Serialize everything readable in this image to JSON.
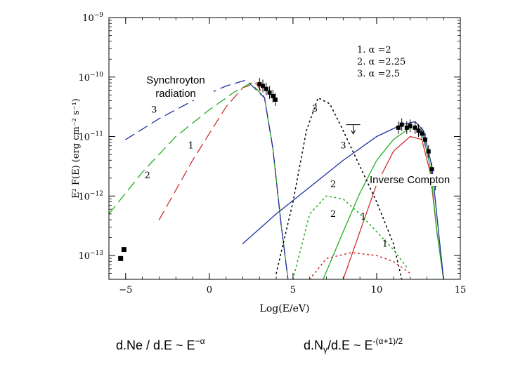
{
  "chart_data": {
    "type": "line",
    "xlabel": "Log(E/eV)",
    "ylabel": "E² F(E) (erg cm⁻² s⁻¹)",
    "xlim": [
      -6,
      15
    ],
    "ylim_log10": [
      -13.4,
      -9
    ],
    "x_ticks": [
      -5,
      0,
      5,
      10,
      15
    ],
    "y_tick_labels": [
      {
        "exp": -9,
        "label": "10",
        "sup": "−9"
      },
      {
        "exp": -10,
        "label": "10",
        "sup": "−10"
      },
      {
        "exp": -11,
        "label": "10",
        "sup": "−11"
      },
      {
        "exp": -12,
        "label": "10",
        "sup": "−12"
      },
      {
        "exp": -13,
        "label": "10",
        "sup": "−13"
      }
    ],
    "legend": [
      "1.  α =2",
      "2.  α =2.25",
      "3.  α =2.5"
    ],
    "legend_placement": "top-right",
    "colors": {
      "s1": "#d03030",
      "s2": "#20b020",
      "s3": "#2030a0",
      "dotted": "#000000"
    },
    "series": [
      {
        "name": "1",
        "color": "#d03030",
        "dash": "long",
        "points": [
          [
            -3,
            -12.4
          ],
          [
            -1,
            -11.4
          ],
          [
            1,
            -10.5
          ],
          [
            2,
            -10.18
          ],
          [
            2.8,
            -10.1
          ],
          [
            3.3,
            -10.35
          ],
          [
            3.8,
            -11.2
          ],
          [
            4.3,
            -12.5
          ],
          [
            4.7,
            -13.4
          ]
        ]
      },
      {
        "name": "2",
        "color": "#20b020",
        "dash": "long",
        "points": [
          [
            -6,
            -12.3
          ],
          [
            -4,
            -11.6
          ],
          [
            -2,
            -11
          ],
          [
            0,
            -10.55
          ],
          [
            1.5,
            -10.25
          ],
          [
            2.5,
            -10.1
          ],
          [
            3.3,
            -10.35
          ],
          [
            3.8,
            -11.2
          ],
          [
            4.3,
            -12.5
          ],
          [
            4.7,
            -13.4
          ]
        ]
      },
      {
        "name": "3",
        "color": "#2030a0",
        "dash": "long",
        "points": [
          [
            -5,
            -11.05
          ],
          [
            -3,
            -10.7
          ],
          [
            -1,
            -10.4
          ],
          [
            1,
            -10.15
          ],
          [
            2.2,
            -10.05
          ],
          [
            3.3,
            -10.35
          ],
          [
            3.8,
            -11.2
          ],
          [
            4.3,
            -12.5
          ],
          [
            4.7,
            -13.4
          ]
        ]
      },
      {
        "name": "1",
        "color": "#d03030",
        "dash": "solid",
        "points": [
          [
            8,
            -13.4
          ],
          [
            9,
            -12.6
          ],
          [
            10,
            -11.8
          ],
          [
            11,
            -11.25
          ],
          [
            12,
            -11.0
          ],
          [
            12.7,
            -11.05
          ],
          [
            13.2,
            -11.6
          ],
          [
            13.6,
            -12.6
          ],
          [
            14,
            -13.4
          ]
        ]
      },
      {
        "name": "2",
        "color": "#20b020",
        "dash": "solid",
        "points": [
          [
            6.8,
            -13.4
          ],
          [
            8,
            -12.6
          ],
          [
            9,
            -11.95
          ],
          [
            10,
            -11.4
          ],
          [
            11,
            -11.05
          ],
          [
            12,
            -10.85
          ],
          [
            12.7,
            -10.9
          ],
          [
            13.2,
            -11.5
          ],
          [
            13.6,
            -12.6
          ],
          [
            14,
            -13.4
          ]
        ]
      },
      {
        "name": "3",
        "color": "#2030a0",
        "dash": "solid",
        "points": [
          [
            2,
            -12.8
          ],
          [
            4,
            -12.3
          ],
          [
            6,
            -11.85
          ],
          [
            8,
            -11.4
          ],
          [
            10,
            -11.0
          ],
          [
            11.5,
            -10.8
          ],
          [
            12.3,
            -10.75
          ],
          [
            12.8,
            -10.9
          ],
          [
            13.3,
            -11.5
          ],
          [
            13.7,
            -12.6
          ],
          [
            14,
            -13.4
          ]
        ]
      },
      {
        "name": "3",
        "color": "#000000",
        "dash": "dotted",
        "points": [
          [
            4,
            -13.3
          ],
          [
            5,
            -12.1
          ],
          [
            5.8,
            -10.9
          ],
          [
            6.5,
            -10.35
          ],
          [
            7.2,
            -10.45
          ],
          [
            8,
            -10.9
          ],
          [
            9,
            -11.5
          ],
          [
            10,
            -12.1
          ],
          [
            11,
            -12.8
          ],
          [
            11.5,
            -13.4
          ]
        ]
      },
      {
        "name": "2",
        "color": "#20b020",
        "dash": "dotted",
        "points": [
          [
            5,
            -13.4
          ],
          [
            6,
            -12.3
          ],
          [
            7,
            -12.0
          ],
          [
            8,
            -12.05
          ],
          [
            9,
            -12.3
          ],
          [
            10,
            -12.6
          ],
          [
            11,
            -12.9
          ],
          [
            11.8,
            -13.2
          ]
        ]
      },
      {
        "name": "1",
        "color": "#d03030",
        "dash": "dotted",
        "points": [
          [
            6,
            -13.4
          ],
          [
            7,
            -13.05
          ],
          [
            8.5,
            -12.95
          ],
          [
            10,
            -13.0
          ],
          [
            11,
            -13.1
          ],
          [
            12,
            -13.3
          ]
        ]
      }
    ],
    "data_points": [
      {
        "group": "optical-xray",
        "points": [
          [
            3,
            -10.12
          ],
          [
            3.2,
            -10.15
          ],
          [
            3.4,
            -10.2
          ],
          [
            3.6,
            -10.26
          ],
          [
            3.8,
            -10.32
          ],
          [
            3.95,
            -10.38
          ]
        ]
      },
      {
        "group": "radio",
        "points": [
          [
            -5.3,
            -13.05
          ],
          [
            -5.1,
            -12.9
          ]
        ]
      },
      {
        "group": "tev",
        "points": [
          [
            11.3,
            -10.85
          ],
          [
            11.5,
            -10.8
          ],
          [
            11.8,
            -10.85
          ],
          [
            12.0,
            -10.82
          ],
          [
            12.3,
            -10.85
          ],
          [
            12.5,
            -10.9
          ],
          [
            12.7,
            -10.95
          ],
          [
            12.9,
            -11.05
          ],
          [
            13.1,
            -11.25
          ],
          [
            13.3,
            -11.55
          ],
          [
            13.5,
            -11.8
          ]
        ]
      }
    ],
    "upper_limit": {
      "x": 8.6,
      "y": -10.8
    },
    "curve_labels": [
      {
        "text": "3",
        "x": -3.3,
        "y": -10.6
      },
      {
        "text": "1",
        "x": -1.1,
        "y": -11.2
      },
      {
        "text": "2",
        "x": -3.7,
        "y": -11.7
      },
      {
        "text": "3",
        "x": 6.3,
        "y": -10.58
      },
      {
        "text": "3",
        "x": 8.0,
        "y": -11.2
      },
      {
        "text": "2",
        "x": 7.4,
        "y": -11.85
      },
      {
        "text": "2",
        "x": 7.4,
        "y": -12.35
      },
      {
        "text": "1",
        "x": 9.2,
        "y": -12.4
      },
      {
        "text": "1",
        "x": 10.5,
        "y": -12.85
      }
    ]
  },
  "annotations": {
    "synchrotron": "Synchroyton radiation",
    "inverse_compton": "Inverse Compton"
  },
  "formulas": {
    "left_main": "d.Ne / d.E  ~ E",
    "left_sup": "−α",
    "right_main_a": "d.N",
    "right_sub": "γ",
    "right_main_b": "/d.E  ~ E",
    "right_sup": "-(α+1)/2"
  }
}
